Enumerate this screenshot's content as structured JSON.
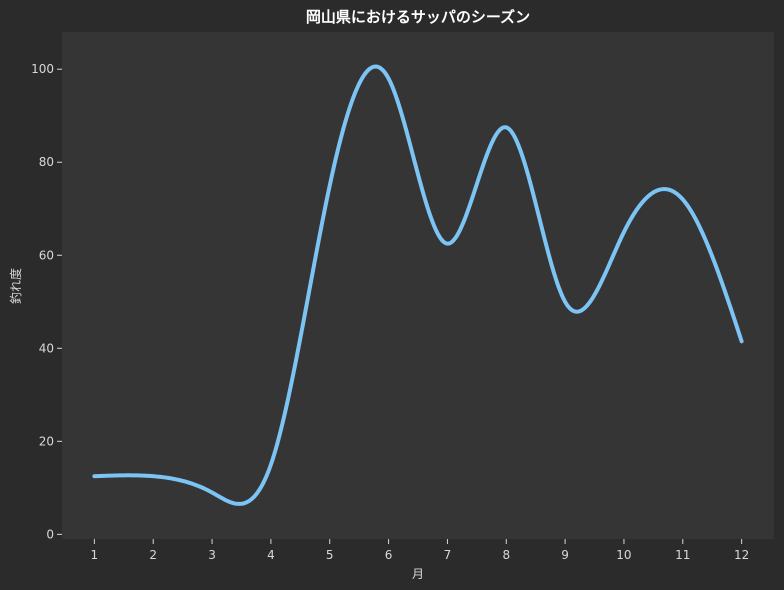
{
  "chart_data": {
    "type": "line",
    "title": "岡山県におけるサッパのシーズン",
    "xlabel": "月",
    "ylabel": "釣れ度",
    "x": [
      1,
      2,
      3,
      4,
      5,
      6,
      7,
      8,
      9,
      10,
      11,
      12
    ],
    "series": [
      {
        "values": [
          12.5,
          12.5,
          9,
          15,
          75,
          98,
          62.5,
          87.5,
          50,
          65,
          72,
          41.5
        ]
      }
    ],
    "xticks": [
      "1",
      "2",
      "3",
      "4",
      "5",
      "6",
      "7",
      "8",
      "9",
      "10",
      "11",
      "12"
    ],
    "yticks": [
      "0",
      "20",
      "40",
      "60",
      "80",
      "100"
    ],
    "xlim": [
      0.45,
      12.55
    ],
    "ylim": [
      -1,
      108
    ],
    "grid": false,
    "line_color": "#7cc4f4",
    "plot_bg": "#353535",
    "fig_bg": "#2b2b2b",
    "curve": "smooth"
  }
}
